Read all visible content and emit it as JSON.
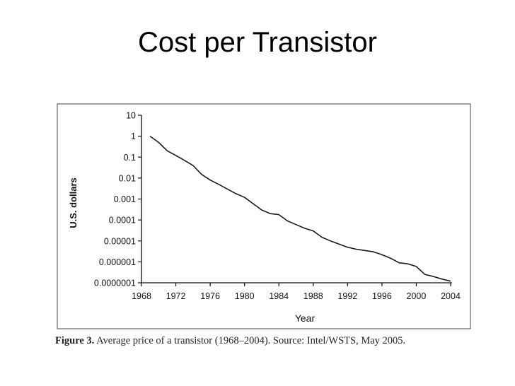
{
  "slide": {
    "title": "Cost per Transistor"
  },
  "caption": {
    "label": "Figure 3.",
    "text": "Average price of a transistor (1968–2004). Source: Intel/WSTS, May 2005."
  },
  "chart_data": {
    "type": "line",
    "title": "",
    "xlabel": "Year",
    "ylabel": "U.S. dollars",
    "y_scale": "log",
    "xlim": [
      1968,
      2004
    ],
    "ylim": [
      1e-07,
      10
    ],
    "x_ticks": [
      1968,
      1972,
      1976,
      1980,
      1984,
      1988,
      1992,
      1996,
      2000,
      2004
    ],
    "x_tick_labels": [
      "1968",
      "1972",
      "1976",
      "1980",
      "1984",
      "1988",
      "1992",
      "1996",
      "2000",
      "2004"
    ],
    "y_ticks": [
      10,
      1,
      0.1,
      0.01,
      0.001,
      0.0001,
      1e-05,
      1e-06,
      1e-07
    ],
    "y_tick_labels": [
      "10",
      "1",
      "0.1",
      "0.01",
      "0.001",
      "0.0001",
      "0.00001",
      "0.000001",
      "0.0000001"
    ],
    "grid": false,
    "line_color": "#1a1a1a",
    "series": [
      {
        "x": [
          1969,
          1970,
          1971,
          1972,
          1973,
          1974,
          1975,
          1976,
          1977,
          1978,
          1979,
          1980,
          1981,
          1982,
          1983,
          1984,
          1985,
          1986,
          1987,
          1988,
          1989,
          1990,
          1991,
          1992,
          1993,
          1994,
          1995,
          1996,
          1997,
          1998,
          1999,
          2000,
          2001,
          2002,
          2003,
          2004
        ],
        "y": [
          1.0,
          0.5,
          0.2,
          0.12,
          0.07,
          0.04,
          0.015,
          0.008,
          0.005,
          0.003,
          0.0018,
          0.0012,
          0.0006,
          0.0003,
          0.0002,
          0.00018,
          9e-05,
          6e-05,
          4e-05,
          3e-05,
          1.5e-05,
          1e-05,
          7e-06,
          5e-06,
          4e-06,
          3.5e-06,
          3e-06,
          2.2e-06,
          1.5e-06,
          9e-07,
          8e-07,
          6e-07,
          2.5e-07,
          2e-07,
          1.5e-07,
          1.2e-07
        ]
      }
    ]
  }
}
